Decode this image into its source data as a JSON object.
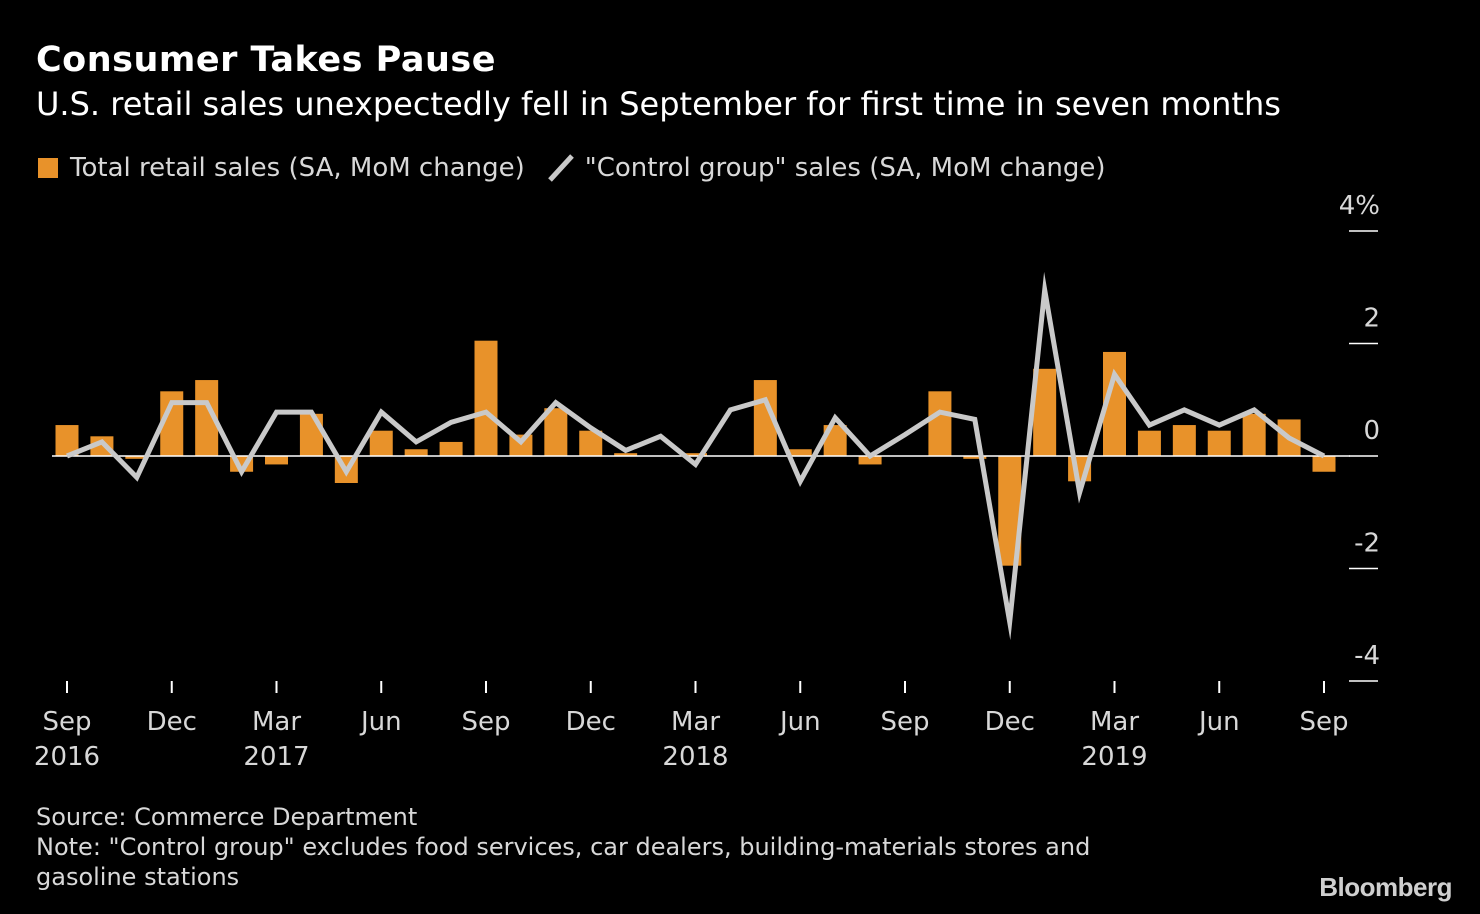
{
  "title": "Consumer Takes Pause",
  "subtitle": "U.S. retail sales unexpectedly fell in September for first time in seven months",
  "source": "Source: Commerce Department",
  "note": "Note: \"Control group\" excludes food services, car dealers, building-materials stores and gasoline stations",
  "brand": "Bloomberg",
  "colors": {
    "background": "#000000",
    "bar": "#e8922a",
    "line": "#c9c9c9",
    "text": "#ffffff",
    "muted_text": "#d8d8d8"
  },
  "chart_data": {
    "type": "bar",
    "x": [
      "Sep 2016",
      "Oct 2016",
      "Nov 2016",
      "Dec 2016",
      "Jan 2017",
      "Feb 2017",
      "Mar 2017",
      "Apr 2017",
      "May 2017",
      "Jun 2017",
      "Jul 2017",
      "Aug 2017",
      "Sep 2017",
      "Oct 2017",
      "Nov 2017",
      "Dec 2017",
      "Jan 2018",
      "Feb 2018",
      "Mar 2018",
      "Apr 2018",
      "May 2018",
      "Jun 2018",
      "Jul 2018",
      "Aug 2018",
      "Sep 2018",
      "Oct 2018",
      "Nov 2018",
      "Dec 2018",
      "Jan 2019",
      "Feb 2019",
      "Mar 2019",
      "Apr 2019",
      "May 2019",
      "Jun 2019",
      "Jul 2019",
      "Aug 2019",
      "Sep 2019"
    ],
    "series": [
      {
        "name": "Total retail sales (SA, MoM change)",
        "type": "bar",
        "color": "#e8922a",
        "values": [
          0.55,
          0.35,
          -0.05,
          1.15,
          1.35,
          -0.28,
          -0.15,
          0.75,
          -0.48,
          0.45,
          0.12,
          0.25,
          2.05,
          0.38,
          0.85,
          0.45,
          0.05,
          0.0,
          0.05,
          0.0,
          1.35,
          0.12,
          0.55,
          -0.15,
          0.0,
          1.15,
          -0.05,
          -1.95,
          1.55,
          -0.45,
          1.85,
          0.45,
          0.55,
          0.45,
          0.75,
          0.65,
          -0.28
        ]
      },
      {
        "name": "\"Control group\" sales (SA, MoM change)",
        "type": "line",
        "color": "#c9c9c9",
        "values": [
          0.0,
          0.25,
          -0.38,
          0.95,
          0.95,
          -0.28,
          0.78,
          0.78,
          -0.28,
          0.78,
          0.25,
          0.6,
          0.78,
          0.25,
          0.95,
          0.5,
          0.1,
          0.35,
          -0.15,
          0.82,
          1.0,
          -0.45,
          0.68,
          0.0,
          0.38,
          0.78,
          0.65,
          -2.95,
          2.95,
          -0.65,
          1.45,
          0.55,
          0.82,
          0.55,
          0.82,
          0.32,
          0.0
        ]
      }
    ],
    "x_tick_labels": [
      {
        "index": 0,
        "month": "Sep",
        "year": "2016"
      },
      {
        "index": 3,
        "month": "Dec",
        "year": ""
      },
      {
        "index": 6,
        "month": "Mar",
        "year": "2017"
      },
      {
        "index": 9,
        "month": "Jun",
        "year": ""
      },
      {
        "index": 12,
        "month": "Sep",
        "year": ""
      },
      {
        "index": 15,
        "month": "Dec",
        "year": ""
      },
      {
        "index": 18,
        "month": "Mar",
        "year": "2018"
      },
      {
        "index": 21,
        "month": "Jun",
        "year": ""
      },
      {
        "index": 24,
        "month": "Sep",
        "year": ""
      },
      {
        "index": 27,
        "month": "Dec",
        "year": ""
      },
      {
        "index": 30,
        "month": "Mar",
        "year": "2019"
      },
      {
        "index": 33,
        "month": "Jun",
        "year": ""
      },
      {
        "index": 36,
        "month": "Sep",
        "year": ""
      }
    ],
    "y_ticks": [
      {
        "value": 4,
        "label": "4%"
      },
      {
        "value": 2,
        "label": "2"
      },
      {
        "value": 0,
        "label": "0"
      },
      {
        "value": -2,
        "label": "-2"
      },
      {
        "value": -4,
        "label": "-4"
      }
    ],
    "ylim": [
      -4,
      4
    ],
    "xlabel": "",
    "ylabel": "",
    "y_axis_position": "right",
    "grid": false,
    "legend_position": "top-left"
  }
}
